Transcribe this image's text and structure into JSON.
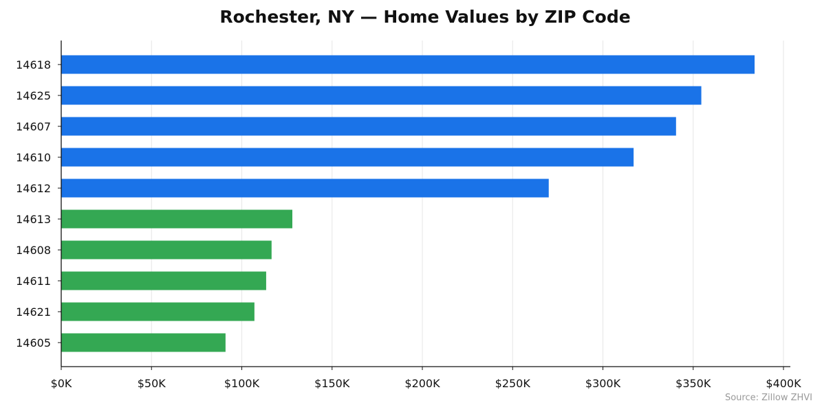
{
  "chart_data": {
    "type": "bar",
    "orientation": "horizontal",
    "title": "Rochester, NY — Home Values by ZIP Code",
    "xlabel": "",
    "ylabel": "",
    "categories": [
      "14618",
      "14625",
      "14607",
      "14610",
      "14612",
      "14613",
      "14608",
      "14611",
      "14621",
      "14605"
    ],
    "values": [
      384000,
      354500,
      340500,
      317000,
      270000,
      128000,
      116500,
      113500,
      107000,
      91000
    ],
    "bar_colors": [
      "#1a73e8",
      "#1a73e8",
      "#1a73e8",
      "#1a73e8",
      "#1a73e8",
      "#34a853",
      "#34a853",
      "#34a853",
      "#34a853",
      "#34a853"
    ],
    "xlim": [
      0,
      400000
    ],
    "x_ticks": [
      0,
      50000,
      100000,
      150000,
      200000,
      250000,
      300000,
      350000,
      400000
    ],
    "x_tick_labels": [
      "$0K",
      "$50K",
      "$100K",
      "$150K",
      "$200K",
      "$250K",
      "$300K",
      "$350K",
      "$400K"
    ],
    "grid": "vertical",
    "source": "Source: Zillow ZHVI"
  }
}
